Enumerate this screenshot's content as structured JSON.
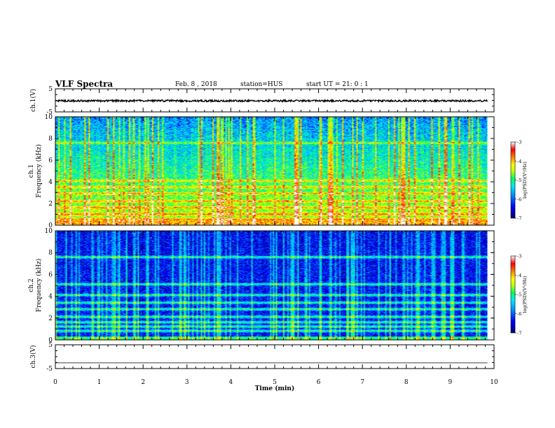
{
  "header": {
    "title": "VLF Spectra",
    "date": "Feb. 8 , 2018",
    "station": "station=HUS",
    "start": "start UT = 21: 0 : 1"
  },
  "chart_data": [
    {
      "type": "line",
      "panel": "ch1-waveform",
      "ylabel": "ch.1(V)",
      "ylim": [
        -5,
        5
      ],
      "yticks": [
        "5",
        "-5"
      ],
      "series": [
        {
          "level": -0.2,
          "noise_amplitude": 0.4
        }
      ]
    },
    {
      "type": "heatmap",
      "panel": "ch1-spectrogram",
      "ylabel": "ch.1\nFrequency (kHz)",
      "ylabel_line1": "ch.1",
      "ylabel_line2": "Frequency (kHz)",
      "ylim": [
        0,
        10
      ],
      "yticks": [
        "0",
        "2",
        "4",
        "6",
        "8",
        "10"
      ],
      "colorbar": {
        "label": "log(PSD)(V²/Hz)",
        "range": [
          -7,
          -3
        ],
        "ticks": [
          "-3",
          "-4",
          "-5",
          "-6",
          "-7"
        ]
      },
      "bands_khz": [
        0.5,
        1.0,
        1.6,
        2.2,
        2.9,
        3.5,
        4.1,
        7.6
      ],
      "data_duration_min": 9.85
    },
    {
      "type": "heatmap",
      "panel": "ch2-spectrogram",
      "ylabel_line1": "ch.2",
      "ylabel_line2": "Frequency (kHz)",
      "ylim": [
        0,
        10
      ],
      "yticks": [
        "0",
        "2",
        "4",
        "6",
        "8",
        "10"
      ],
      "colorbar": {
        "label": "log(PSD)(V²/Hz)",
        "range": [
          -7,
          -3
        ],
        "ticks": [
          "-3",
          "-4",
          "-5",
          "-6",
          "-7"
        ]
      },
      "bands_khz": [
        0.8,
        1.2,
        1.6,
        2.1,
        2.8,
        3.4,
        4.1,
        5.1,
        7.6
      ],
      "data_duration_min": 9.85
    },
    {
      "type": "line",
      "panel": "ch3-waveform",
      "ylabel": "ch.3(V)",
      "ylim": [
        -5,
        5
      ],
      "yticks": [
        "5",
        "-5"
      ],
      "series": [
        {
          "level": -2.6,
          "noise_amplitude": 0.0
        }
      ]
    }
  ],
  "xaxis": {
    "label": "Time (min)",
    "range": [
      0,
      10
    ],
    "ticks": [
      "0",
      "1",
      "2",
      "3",
      "4",
      "5",
      "6",
      "7",
      "8",
      "9",
      "10"
    ]
  },
  "colors": {
    "colormap": [
      "#00007a",
      "#0000ff",
      "#0090ff",
      "#00e6ff",
      "#00ff60",
      "#c8ff00",
      "#ffff00",
      "#ff8000",
      "#ff0000",
      "#ffffff"
    ]
  }
}
